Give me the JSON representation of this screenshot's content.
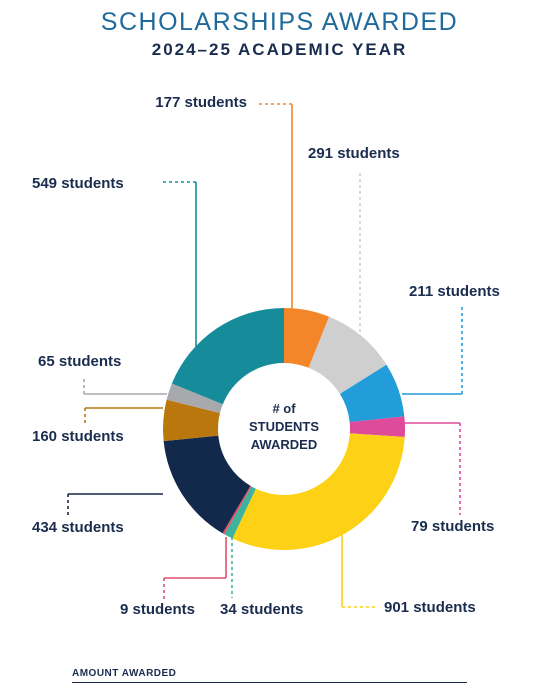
{
  "header": {
    "title": "SCHOLARSHIPS AWARDED",
    "subtitle": "2024–25 ACADEMIC YEAR"
  },
  "center_label": [
    "# of",
    "STUDENTS",
    "AWARDED"
  ],
  "footer": {
    "label": "AMOUNT AWARDED"
  },
  "colors": {
    "title": "#1f6a9a",
    "navy": "#1b2d4f",
    "rule": "#1b2d4f"
  },
  "chart_data": {
    "type": "pie",
    "variant": "donut",
    "start": "top, clockwise",
    "slices": [
      {
        "label": "177 students",
        "value": 177,
        "color": "#f4862a"
      },
      {
        "label": "291 students",
        "value": 291,
        "color": "#cfcfcf"
      },
      {
        "label": "211 students",
        "value": 211,
        "color": "#229dd9"
      },
      {
        "label": "79 students",
        "value": 79,
        "color": "#de4b9b"
      },
      {
        "label": "901 students",
        "value": 901,
        "color": "#fcd116"
      },
      {
        "label": "34 students",
        "value": 34,
        "color": "#3cb49b"
      },
      {
        "label": "9 students",
        "value": 9,
        "color": "#e2506a"
      },
      {
        "label": "434 students",
        "value": 434,
        "color": "#13294b"
      },
      {
        "label": "160 students",
        "value": 160,
        "color": "#b9770e"
      },
      {
        "label": "65 students",
        "value": 65,
        "color": "#a7a9ac"
      },
      {
        "label": "549 students",
        "value": 549,
        "color": "#168c9a"
      }
    ]
  }
}
